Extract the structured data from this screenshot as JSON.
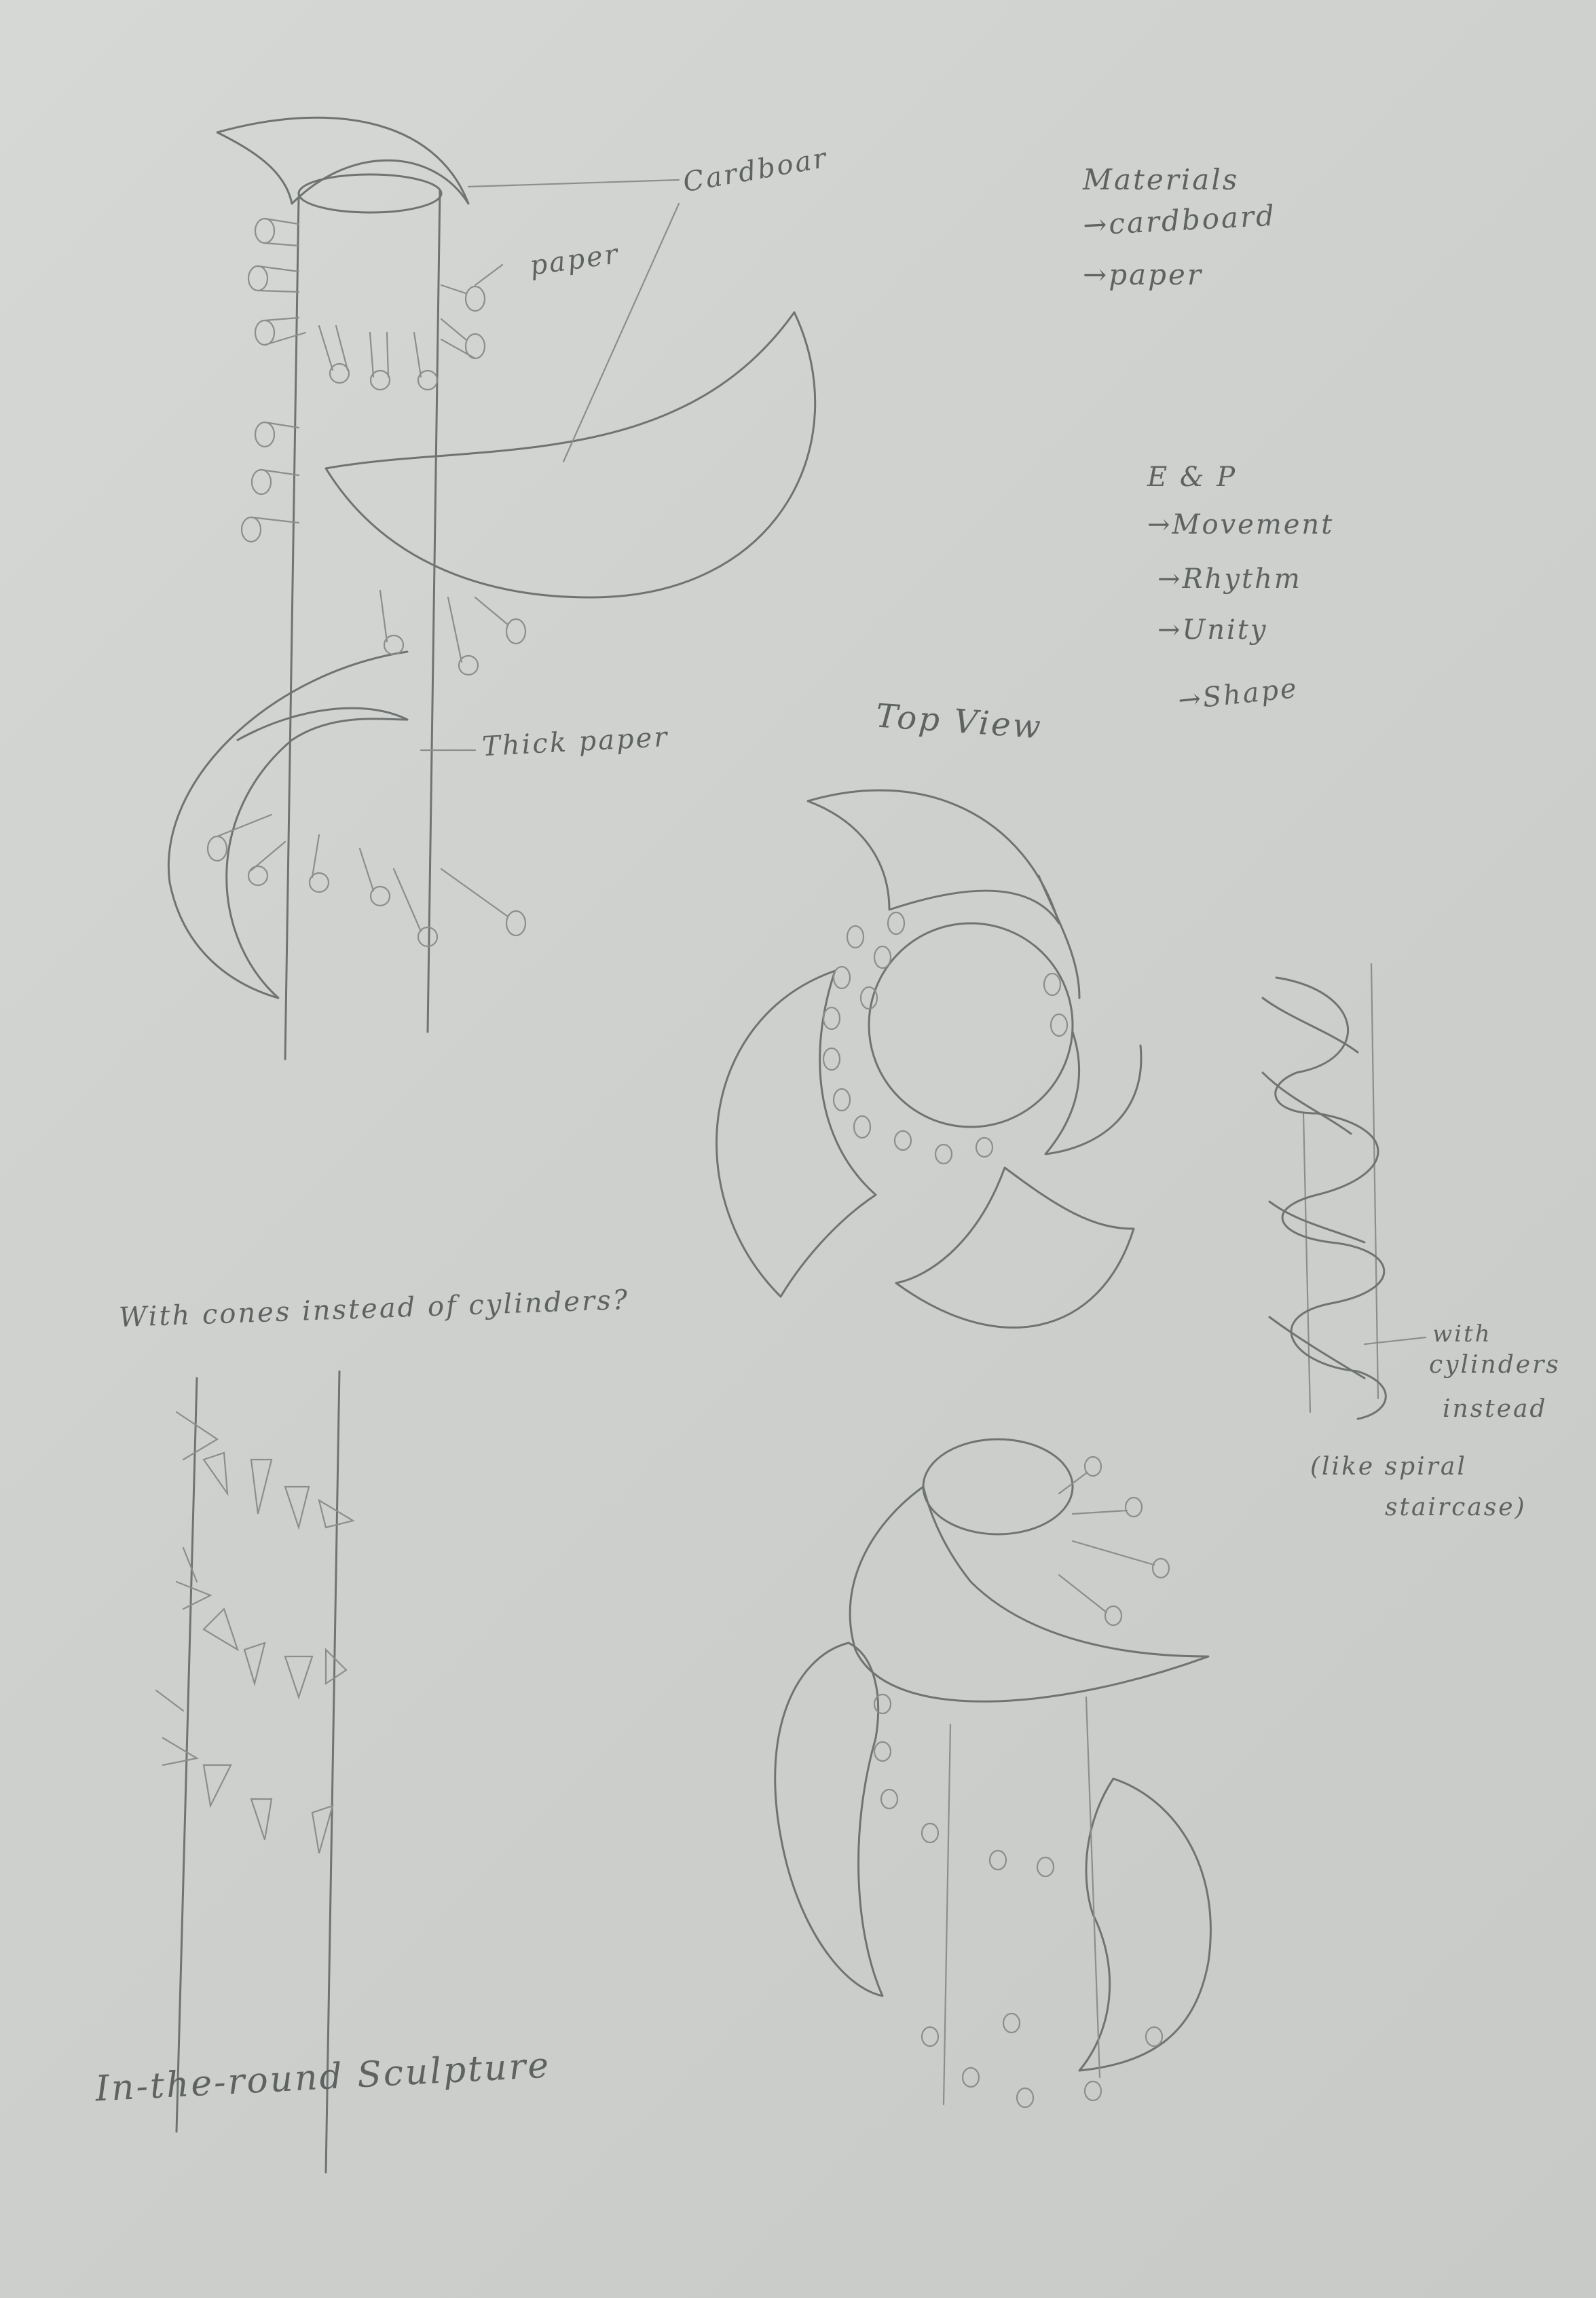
{
  "annotations": {
    "cardboard_label": "Cardboar",
    "paper_label": "paper",
    "thick_paper_label": "Thick paper",
    "materials_title": "Materials",
    "materials_items": [
      "→cardboard",
      "→paper"
    ],
    "ep_title": "E & P",
    "ep_items": [
      "→Movement",
      "→Rhythm",
      "→Unity",
      "→Shape"
    ],
    "top_view_label": "Top View",
    "spiral_note_lines": [
      "with",
      "cylinders",
      "instead",
      "(like spiral",
      "staircase)"
    ],
    "cones_question": "With cones instead of cylinders?",
    "sculpture_title": "In-the-round Sculpture"
  }
}
